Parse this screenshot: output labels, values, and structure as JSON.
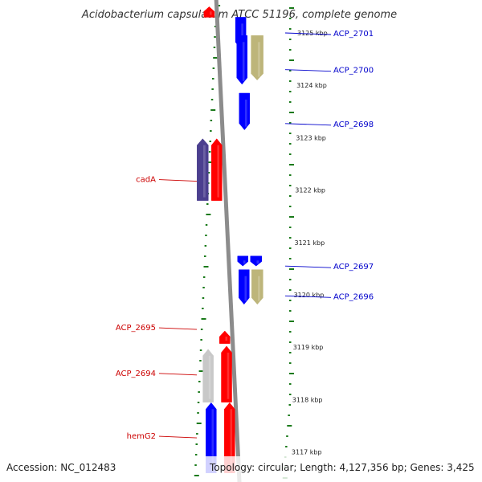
{
  "title": "Acidobacterium capsulatum ATCC 51196, complete genome",
  "footer": {
    "accession": "Accession: NC_012483",
    "topology": "Topology: circular; Length: 4,127,356 bp; Genes: 3,425"
  },
  "colors": {
    "forward": "#ff0000",
    "reverse": "#0000ff",
    "label_forward": "#cc0000",
    "label_reverse": "#0000cc",
    "pseudo": "#c8c8c8",
    "rna": "#bdb57a",
    "cds_dark": "#4b3f8f",
    "axis": "#8c8c8c",
    "ticks": "#1a7a1a"
  },
  "chart_data": {
    "type": "linear genome map (clockwise segment, top = higher coordinate)",
    "scale_labels": [
      {
        "kbp": 3125,
        "label": "3125 kbp"
      },
      {
        "kbp": 3124,
        "label": "3124 kbp"
      },
      {
        "kbp": 3123,
        "label": "3123 kbp"
      },
      {
        "kbp": 3122,
        "label": "3122 kbp"
      },
      {
        "kbp": 3121,
        "label": "3121 kbp"
      },
      {
        "kbp": 3120,
        "label": "3120 kbp"
      },
      {
        "kbp": 3119,
        "label": "3119 kbp"
      },
      {
        "kbp": 3118,
        "label": "3118 kbp"
      },
      {
        "kbp": 3117,
        "label": "3117 kbp"
      }
    ],
    "labeled_genes": [
      {
        "name": "ACP_2701",
        "strand": "reverse",
        "center_kbp": 3125.0
      },
      {
        "name": "ACP_2700",
        "strand": "reverse",
        "center_kbp": 3124.3
      },
      {
        "name": "ACP_2698",
        "strand": "reverse",
        "center_kbp": 3123.27
      },
      {
        "name": "cadA",
        "strand": "forward",
        "center_kbp": 3122.2
      },
      {
        "name": "ACP_2697",
        "strand": "reverse",
        "center_kbp": 3120.55
      },
      {
        "name": "ACP_2696",
        "strand": "reverse",
        "center_kbp": 3119.98
      },
      {
        "name": "ACP_2695",
        "strand": "forward",
        "center_kbp": 3119.37
      },
      {
        "name": "ACP_2694",
        "strand": "forward",
        "center_kbp": 3118.5
      },
      {
        "name": "hemG2",
        "strand": "forward",
        "center_kbp": 3117.3
      }
    ],
    "feature_blocks": [
      {
        "track": "outer_reverse",
        "type": "cds",
        "start_kbp": 3124.7,
        "end_kbp": 3125.3,
        "dir": "down"
      },
      {
        "track": "outer_reverse",
        "type": "cds",
        "start_kbp": 3124.02,
        "end_kbp": 3124.95,
        "dir": "down"
      },
      {
        "track": "outer_reverse_rna",
        "type": "rna",
        "start_kbp": 3124.1,
        "end_kbp": 3124.95,
        "dir": "down"
      },
      {
        "track": "outer_reverse",
        "type": "cds",
        "start_kbp": 3123.15,
        "end_kbp": 3123.85,
        "dir": "down"
      },
      {
        "track": "outer_reverse_a",
        "type": "cds",
        "start_kbp": 3120.55,
        "end_kbp": 3120.74,
        "dir": "down"
      },
      {
        "track": "outer_reverse_b",
        "type": "cds",
        "start_kbp": 3120.55,
        "end_kbp": 3120.74,
        "dir": "down"
      },
      {
        "track": "outer_reverse_a",
        "type": "cds",
        "start_kbp": 3119.82,
        "end_kbp": 3120.48,
        "dir": "down"
      },
      {
        "track": "outer_reverse_b",
        "type": "rna",
        "start_kbp": 3119.82,
        "end_kbp": 3120.48,
        "dir": "down"
      },
      {
        "track": "inner_forward",
        "type": "cds",
        "start_kbp": 3121.8,
        "end_kbp": 3122.98,
        "dir": "up"
      },
      {
        "track": "inner_forward_dark",
        "type": "cds_dark",
        "start_kbp": 3121.8,
        "end_kbp": 3122.98,
        "dir": "up"
      },
      {
        "track": "inner_forward",
        "type": "cds",
        "start_kbp": 3119.07,
        "end_kbp": 3119.31,
        "dir": "up"
      },
      {
        "track": "inner_forward",
        "type": "cds",
        "start_kbp": 3117.95,
        "end_kbp": 3119.02,
        "dir": "up"
      },
      {
        "track": "inner_forward_outer",
        "type": "pseudo",
        "start_kbp": 3117.95,
        "end_kbp": 3118.96,
        "dir": "up"
      },
      {
        "track": "inner_forward_outer",
        "type": "cds_reverse",
        "start_kbp": 3116.6,
        "end_kbp": 3117.94,
        "dir": "up"
      },
      {
        "track": "inner_forward",
        "type": "cds",
        "start_kbp": 3116.6,
        "end_kbp": 3117.94,
        "dir": "up"
      },
      {
        "track": "inner_forward",
        "type": "cds",
        "start_kbp": 3125.3,
        "end_kbp": 3125.5,
        "dir": "up"
      }
    ]
  }
}
